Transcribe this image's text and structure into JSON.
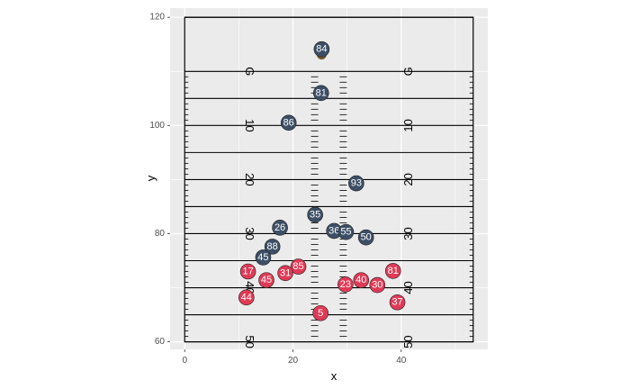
{
  "chart_data": {
    "type": "scatter",
    "xlabel": "x",
    "ylabel": "y",
    "xlim": [
      -2.7,
      56.0
    ],
    "ylim": [
      58.6,
      121.7
    ],
    "x_ticks": [
      0,
      20,
      40
    ],
    "y_ticks": [
      60,
      80,
      100,
      120
    ],
    "x_tick_labels": [
      "0",
      "20",
      "40"
    ],
    "y_tick_labels": [
      "60",
      "80",
      "100",
      "120"
    ],
    "grid": true,
    "field": {
      "x_range": [
        0,
        53.3
      ],
      "y_range": [
        60,
        120
      ],
      "yard_lines": [
        60,
        65,
        70,
        75,
        80,
        85,
        90,
        95,
        100,
        105,
        110,
        120
      ],
      "hash_x": [
        24.0,
        29.3
      ],
      "yard_numbers": [
        {
          "label": "G",
          "y": 110
        },
        {
          "label": "10",
          "y": 100
        },
        {
          "label": "20",
          "y": 90
        },
        {
          "label": "30",
          "y": 80
        },
        {
          "label": "40",
          "y": 70
        },
        {
          "label": "50",
          "y": 60
        }
      ],
      "yard_number_x": [
        12,
        41.3
      ]
    },
    "colors": {
      "panel_bg": "#EBEBEB",
      "gridline": "#FFFFFF",
      "field_line": "#000000",
      "defense_fill": "#3D4F66",
      "offense_fill": "#E03A56",
      "ball": "#7A5A2E"
    },
    "ball": {
      "x": 25.3,
      "y": 113.1
    },
    "series": [
      {
        "team": "defense",
        "points": [
          {
            "label": "84",
            "x": 25.3,
            "y": 114.1
          },
          {
            "label": "81",
            "x": 25.2,
            "y": 106.0
          },
          {
            "label": "86",
            "x": 19.2,
            "y": 100.5
          },
          {
            "label": "93",
            "x": 31.7,
            "y": 89.3
          },
          {
            "label": "35",
            "x": 24.1,
            "y": 83.5
          },
          {
            "label": "26",
            "x": 17.6,
            "y": 81.1
          },
          {
            "label": "36",
            "x": 27.6,
            "y": 80.5
          },
          {
            "label": "55",
            "x": 29.8,
            "y": 80.3
          },
          {
            "label": "50",
            "x": 33.5,
            "y": 79.3
          },
          {
            "label": "88",
            "x": 16.2,
            "y": 77.6
          },
          {
            "label": "45",
            "x": 14.5,
            "y": 75.6
          }
        ]
      },
      {
        "team": "offense",
        "points": [
          {
            "label": "85",
            "x": 21.0,
            "y": 73.9
          },
          {
            "label": "81",
            "x": 38.5,
            "y": 73.1
          },
          {
            "label": "17",
            "x": 11.7,
            "y": 73.0
          },
          {
            "label": "31",
            "x": 18.6,
            "y": 72.7
          },
          {
            "label": "45",
            "x": 15.1,
            "y": 71.4
          },
          {
            "label": "40",
            "x": 32.6,
            "y": 71.4
          },
          {
            "label": "23",
            "x": 29.7,
            "y": 70.6
          },
          {
            "label": "30",
            "x": 35.6,
            "y": 70.5
          },
          {
            "label": "44",
            "x": 11.4,
            "y": 68.2
          },
          {
            "label": "37",
            "x": 39.3,
            "y": 67.3
          },
          {
            "label": "5",
            "x": 25.1,
            "y": 65.3
          }
        ]
      }
    ]
  }
}
